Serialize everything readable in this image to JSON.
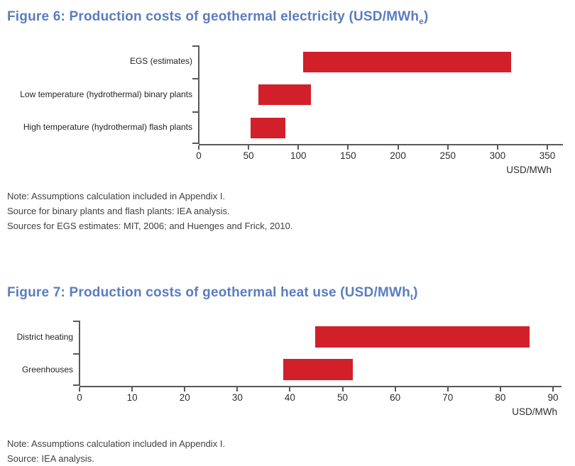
{
  "colors": {
    "bar_red": "#d1202a",
    "title_blue": "#5a7dbf",
    "axis_gray": "#58595b",
    "label_text": "#231f20",
    "note_text": "#414042"
  },
  "figure6": {
    "title_prefix": "Figure 6: Production costs of geothermal electricity (USD/MWh",
    "title_sub": "e",
    "title_suffix": ")",
    "notes": [
      "Note: Assumptions calculation included in Appendix I.",
      "Source for binary plants and flash plants: IEA analysis.",
      "Sources for EGS estimates: MIT, 2006; and Huenges and Frick, 2010."
    ]
  },
  "figure7": {
    "title_prefix": "Figure 7: Production costs of geothermal heat use (USD/MWh",
    "title_sub": "t",
    "title_suffix": ")",
    "notes": [
      "Note: Assumptions calculation included in Appendix I.",
      "Source: IEA analysis."
    ]
  },
  "chart_data": [
    {
      "type": "bar",
      "subtype": "horizontal_range_bars",
      "title": "Figure 6: Production costs of geothermal electricity (USD/MWhe)",
      "categories": [
        "EGS (estimates)",
        "Low temperature (hydrothermal) binary plants",
        "High temperature (hydrothermal) flash plants"
      ],
      "ranges": [
        [
          100,
          300
        ],
        [
          57,
          108
        ],
        [
          50,
          83
        ]
      ],
      "xlabel": "USD/MWh",
      "xlim": [
        0,
        350
      ],
      "xticks": [
        0,
        50,
        100,
        150,
        200,
        250,
        300,
        350
      ],
      "bar_color": "#d1202a",
      "grid": false,
      "legend": false
    },
    {
      "type": "bar",
      "subtype": "horizontal_range_bars",
      "title": "Figure 7: Production costs of geothermal heat use (USD/MWht)",
      "categories": [
        "District heating",
        "Greenhouses"
      ],
      "ranges": [
        [
          44,
          84
        ],
        [
          38,
          51
        ]
      ],
      "xlabel": "USD/MWh",
      "xlim": [
        0,
        90
      ],
      "xticks": [
        0,
        10,
        20,
        30,
        40,
        50,
        60,
        70,
        80,
        90
      ],
      "bar_color": "#d1202a",
      "grid": false,
      "legend": false
    }
  ]
}
